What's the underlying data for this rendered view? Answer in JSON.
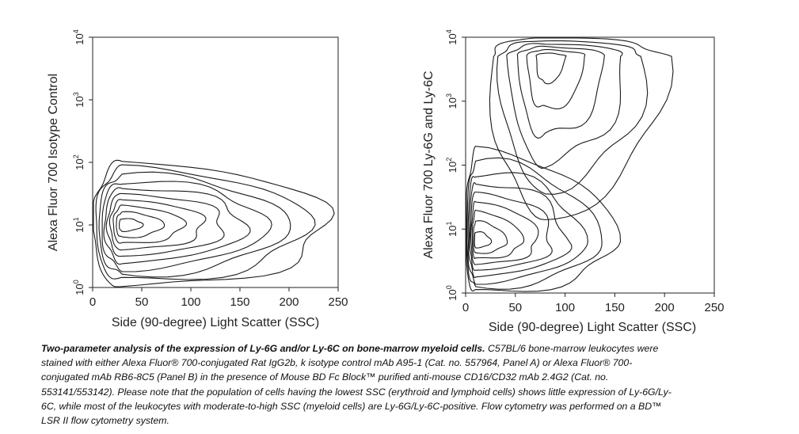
{
  "chart_data": [
    {
      "type": "contour",
      "panel": "A",
      "xlabel": "Side (90-degree) Light Scatter (SSC)",
      "ylabel": "Alexa Fluor 700 Isotype Control",
      "xlim": [
        0,
        250
      ],
      "ylim_log10": [
        0,
        4
      ],
      "x_ticks": [
        "0",
        "50",
        "100",
        "150",
        "200",
        "250"
      ],
      "y_ticks": [
        {
          "base": "10",
          "exp": "0"
        },
        {
          "base": "10",
          "exp": "1"
        },
        {
          "base": "10",
          "exp": "2"
        },
        {
          "base": "10",
          "exp": "3"
        },
        {
          "base": "10",
          "exp": "4"
        }
      ],
      "populations": [
        {
          "center": {
            "ssc": 30,
            "log10_fl": 1.0
          },
          "ssc_range": [
            0,
            240
          ],
          "log10_range": [
            0,
            2.0
          ],
          "levels": 10
        }
      ]
    },
    {
      "type": "contour",
      "panel": "B",
      "xlabel": "Side (90-degree) Light Scatter (SSC)",
      "ylabel": "Alexa Fluor 700 Ly-6G and Ly-6C",
      "xlim": [
        0,
        250
      ],
      "ylim_log10": [
        0,
        4
      ],
      "x_ticks": [
        "0",
        "50",
        "100",
        "150",
        "200",
        "250"
      ],
      "y_ticks": [
        {
          "base": "10",
          "exp": "0"
        },
        {
          "base": "10",
          "exp": "1"
        },
        {
          "base": "10",
          "exp": "2"
        },
        {
          "base": "10",
          "exp": "3"
        },
        {
          "base": "10",
          "exp": "4"
        }
      ],
      "populations": [
        {
          "center": {
            "ssc": 10,
            "log10_fl": 0.8
          },
          "ssc_range": [
            0,
            150
          ],
          "log10_range": [
            0,
            2.2
          ],
          "levels": 9
        },
        {
          "center": {
            "ssc": 80,
            "log10_fl": 3.7
          },
          "ssc_range": [
            25,
            200
          ],
          "log10_range": [
            1.2,
            4.0
          ],
          "levels": 6
        }
      ]
    }
  ],
  "caption": {
    "title": "Two-parameter analysis of the expression of Ly-6G and/or Ly-6C on bone-marrow myeloid cells.",
    "body": " C57BL/6 bone-marrow leukocytes were stained with either Alexa Fluor® 700-conjugated Rat IgG2b, k isotype control mAb A95-1 (Cat. no. 557964, Panel A) or Alexa Fluor® 700-conjugated mAb RB6-8C5 (Panel B) in the presence of Mouse BD Fc Block™ purified anti-mouse CD16/CD32 mAb 2.4G2 (Cat. no. 553141/553142).  Please note that the population of cells having the lowest SSC (erythroid and lymphoid cells) shows little expression of Ly-6G/Ly-6C, while most of the leukocytes with moderate-to-high SSC (myeloid cells) are Ly-6G/Ly-6C-positive.  Flow cytometry was performed on a BD™ LSR II flow cytometry system."
  }
}
